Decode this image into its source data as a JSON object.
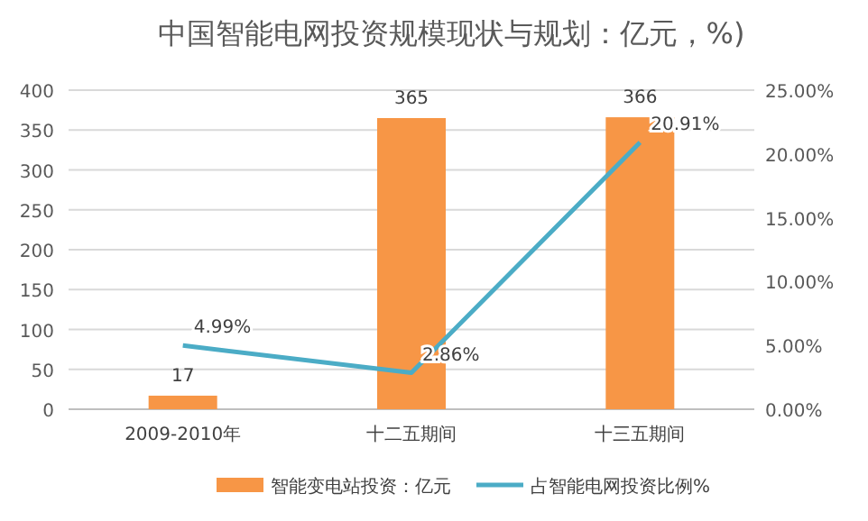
{
  "chart_data": {
    "type": "bar",
    "title": "中国智能电网投资规模现状与规划：亿元，%)",
    "categories": [
      "2009-2010年",
      "十二五期间",
      "十三五期间"
    ],
    "series": [
      {
        "name": "智能变电站投资：亿元",
        "color": "#f79646",
        "values": [
          17,
          365,
          366
        ],
        "value_labels": [
          "17",
          "365",
          "366"
        ]
      },
      {
        "name": "占智能电网投资比例%",
        "type": "line",
        "axis": "y2",
        "color": "#4bacc6",
        "values": [
          4.99,
          2.86,
          20.91
        ],
        "value_labels": [
          "4.99%",
          "2.86%",
          "20.91%"
        ]
      }
    ],
    "ylim": [
      0,
      400
    ],
    "yticks": [
      0,
      50,
      100,
      150,
      200,
      250,
      300,
      350,
      400
    ],
    "y2lim": [
      0,
      25
    ],
    "y2ticks": [
      {
        "value": 0,
        "label": "0.00%"
      },
      {
        "value": 5,
        "label": "5.00%"
      },
      {
        "value": 10,
        "label": "10.00%"
      },
      {
        "value": 15,
        "label": "15.00%"
      },
      {
        "value": 20,
        "label": "20.00%"
      },
      {
        "value": 25,
        "label": "25.00%"
      }
    ],
    "grid": "y",
    "legend": "bottom",
    "marker": "none",
    "line_style": "solid"
  }
}
